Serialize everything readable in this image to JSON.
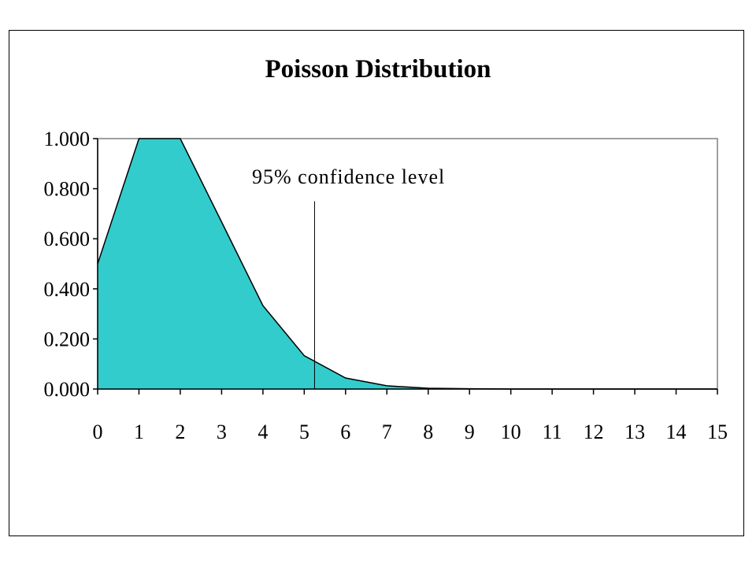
{
  "chart_data": {
    "type": "area",
    "title": "Poisson Distribution",
    "xlabel": "",
    "ylabel": "",
    "x": [
      0,
      1,
      2,
      3,
      4,
      5,
      6,
      7,
      8,
      9,
      10,
      11,
      12,
      13,
      14,
      15
    ],
    "series": [
      {
        "values": [
          0.5,
          1.0,
          1.0,
          0.667,
          0.333,
          0.133,
          0.044,
          0.013,
          0.003,
          0.001,
          0.0,
          0.0,
          0.0,
          0.0,
          0.0,
          0.0
        ]
      }
    ],
    "ylim": [
      0,
      1
    ],
    "xlim": [
      0,
      15
    ],
    "y_ticks": [
      "0.000",
      "0.200",
      "0.400",
      "0.600",
      "0.800",
      "1.000"
    ],
    "x_ticks": [
      "0",
      "1",
      "2",
      "3",
      "4",
      "5",
      "6",
      "7",
      "8",
      "9",
      "10",
      "11",
      "12",
      "13",
      "14",
      "15"
    ],
    "annotation": {
      "text": "95% confidence level",
      "x": 5.25,
      "y_top": 0.75
    },
    "grid": false,
    "legend": "none",
    "fill_color": "#33CCCC",
    "line_color": "#000000"
  }
}
